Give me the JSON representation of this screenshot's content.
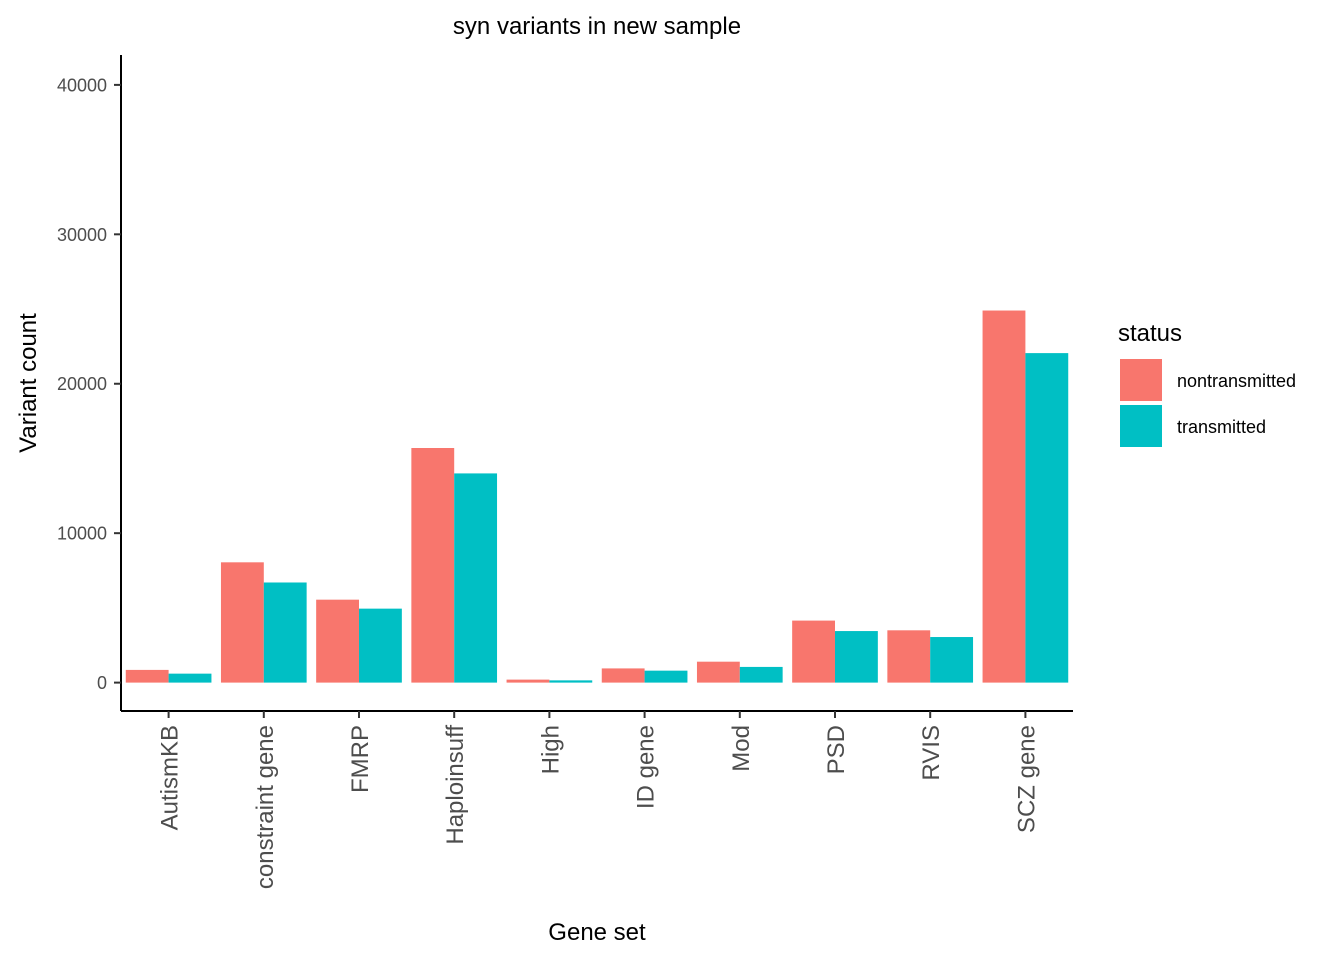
{
  "chart_data": {
    "type": "bar",
    "title": "syn variants in new sample",
    "xlabel": "Gene set",
    "ylabel": "Variant count",
    "categories": [
      "AutismKB",
      "constraint gene",
      "FMRP",
      "Haploinsuff",
      "High",
      "ID gene",
      "Mod",
      "PSD",
      "RVIS",
      "SCZ gene"
    ],
    "series": [
      {
        "name": "nontransmitted",
        "color": "#F8766D",
        "values": [
          850,
          8050,
          5550,
          15700,
          200,
          950,
          1400,
          4150,
          3500,
          24900
        ]
      },
      {
        "name": "transmitted",
        "color": "#00BFC4",
        "values": [
          600,
          6700,
          4950,
          14000,
          150,
          800,
          1050,
          3450,
          3050,
          22050
        ]
      }
    ],
    "ylim": [
      -1900,
      42000
    ],
    "yticks": [
      0,
      10000,
      20000,
      30000,
      40000
    ],
    "grid": false,
    "legend": {
      "title": "status",
      "position": "right"
    }
  }
}
